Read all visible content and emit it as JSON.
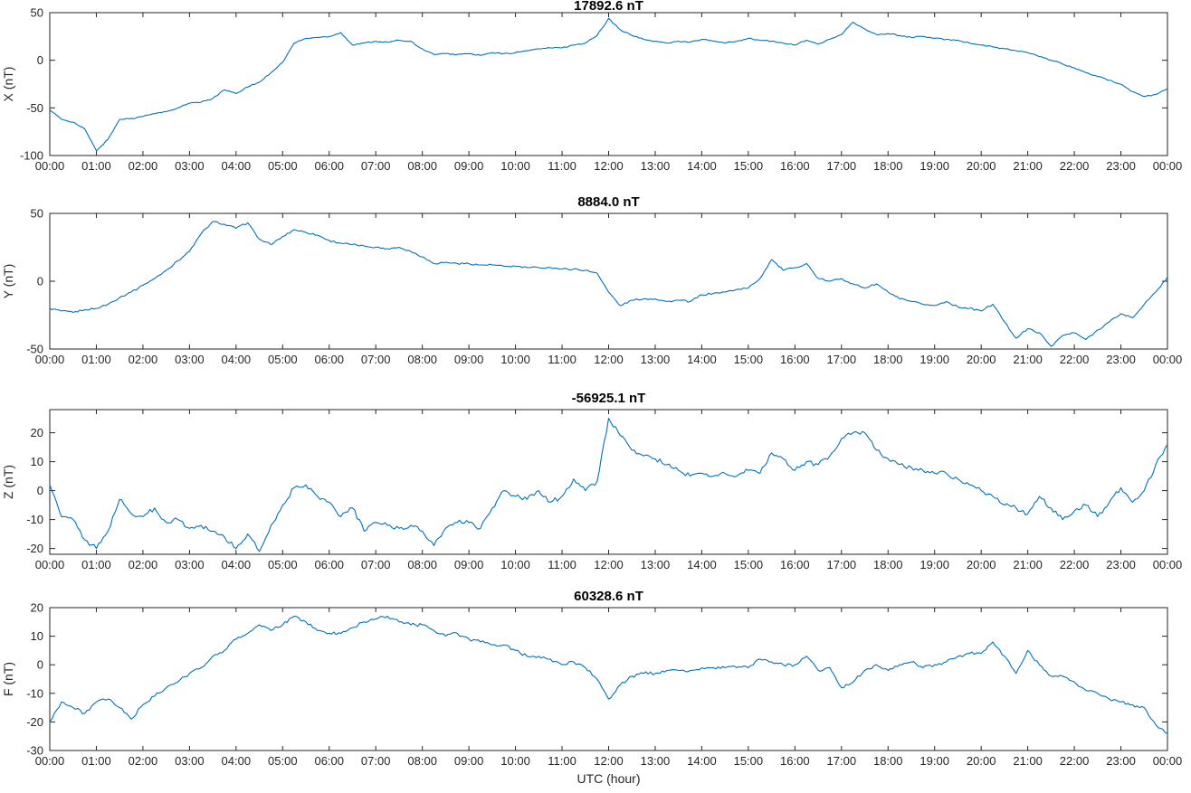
{
  "figure": {
    "xlabel": "UTC (hour)",
    "x_tick_labels": [
      "00:00",
      "01:00",
      "02:00",
      "03:00",
      "04:00",
      "05:00",
      "06:00",
      "07:00",
      "08:00",
      "09:00",
      "10:00",
      "11:00",
      "12:00",
      "13:00",
      "14:00",
      "15:00",
      "16:00",
      "17:00",
      "18:00",
      "19:00",
      "20:00",
      "21:00",
      "22:00",
      "23:00",
      "00:00"
    ],
    "colors": {
      "line": "#0072BD",
      "axis": "#262626",
      "text": "#262626",
      "background": "#FFFFFF"
    }
  },
  "chart_data": [
    {
      "type": "line",
      "title": "17892.6 nT",
      "ylabel": "X (nT)",
      "ylim": [
        -100,
        50
      ],
      "yticks": [
        50,
        0,
        -50,
        -100
      ],
      "x_start_hour": 0,
      "x_step_hours": 0.25,
      "grid": false,
      "legend": null,
      "noise_nT": 1.3,
      "values": [
        -52,
        -62,
        -65,
        -72,
        -95,
        -83,
        -62,
        -61,
        -59,
        -56,
        -54,
        -50,
        -45,
        -44,
        -40,
        -31,
        -35,
        -28,
        -23,
        -13,
        -2,
        18,
        23,
        24,
        25,
        29,
        16,
        18,
        20,
        19,
        21,
        20,
        12,
        6,
        7,
        6,
        7,
        5,
        8,
        7,
        8,
        10,
        12,
        13,
        13,
        16,
        18,
        26,
        44,
        32,
        26,
        22,
        20,
        18,
        20,
        19,
        22,
        20,
        18,
        20,
        23,
        21,
        20,
        18,
        16,
        21,
        17,
        22,
        27,
        40,
        33,
        27,
        28,
        26,
        24,
        25,
        23,
        22,
        21,
        18,
        16,
        14,
        12,
        10,
        8,
        4,
        0,
        -4,
        -8,
        -13,
        -17,
        -21,
        -25,
        -33,
        -38,
        -36,
        -30
      ]
    },
    {
      "type": "line",
      "title": "8884.0 nT",
      "ylabel": "Y (nT)",
      "ylim": [
        -50,
        50
      ],
      "yticks": [
        50,
        0,
        -50
      ],
      "x_start_hour": 0,
      "x_step_hours": 0.25,
      "grid": false,
      "legend": null,
      "noise_nT": 1.3,
      "values": [
        -20,
        -22,
        -23,
        -21,
        -20,
        -17,
        -12,
        -8,
        -3,
        2,
        8,
        15,
        22,
        35,
        44,
        42,
        39,
        43,
        31,
        27,
        33,
        38,
        36,
        34,
        30,
        28,
        27,
        26,
        25,
        24,
        25,
        22,
        18,
        13,
        14,
        13,
        13,
        12,
        12,
        11,
        11,
        10,
        10,
        10,
        9,
        9,
        8,
        6,
        -8,
        -18,
        -14,
        -13,
        -13,
        -15,
        -14,
        -15,
        -10,
        -9,
        -8,
        -6,
        -5,
        2,
        16,
        8,
        10,
        13,
        2,
        0,
        2,
        -2,
        -5,
        -2,
        -8,
        -13,
        -15,
        -17,
        -18,
        -15,
        -19,
        -20,
        -22,
        -17,
        -30,
        -42,
        -35,
        -38,
        -48,
        -40,
        -38,
        -43,
        -36,
        -30,
        -24,
        -27,
        -17,
        -8,
        3
      ]
    },
    {
      "type": "line",
      "title": "-56925.1 nT",
      "ylabel": "Z (nT)",
      "ylim": [
        -22,
        28
      ],
      "yticks": [
        20,
        10,
        0,
        -10,
        -20
      ],
      "x_start_hour": 0,
      "x_step_hours": 0.25,
      "grid": false,
      "legend": null,
      "noise_nT": 1.6,
      "values": [
        2,
        -9,
        -10,
        -17,
        -20,
        -14,
        -3,
        -8,
        -9,
        -6,
        -11,
        -10,
        -13,
        -12,
        -14,
        -16,
        -20,
        -15,
        -21,
        -12,
        -5,
        1,
        2,
        -2,
        -4,
        -9,
        -6,
        -14,
        -11,
        -12,
        -13,
        -12,
        -14,
        -19,
        -13,
        -11,
        -11,
        -13,
        -6,
        0,
        -2,
        -3,
        0,
        -4,
        -2,
        4,
        0,
        3,
        25,
        19,
        14,
        12,
        11,
        9,
        7,
        5,
        6,
        5,
        6,
        5,
        7,
        6,
        13,
        11,
        7,
        10,
        9,
        12,
        18,
        20,
        20,
        14,
        11,
        9,
        8,
        7,
        6,
        6,
        4,
        2,
        0,
        -2,
        -5,
        -6,
        -8,
        -2,
        -6,
        -10,
        -7,
        -5,
        -9,
        -4,
        1,
        -4,
        0,
        9,
        16
      ]
    },
    {
      "type": "line",
      "title": "60328.6 nT",
      "ylabel": "F (nT)",
      "ylim": [
        -30,
        20
      ],
      "yticks": [
        20,
        10,
        0,
        -10,
        -20,
        -30
      ],
      "x_start_hour": 0,
      "x_step_hours": 0.25,
      "grid": false,
      "legend": null,
      "noise_nT": 1.1,
      "values": [
        -20,
        -13,
        -15,
        -17,
        -13,
        -12,
        -15,
        -19,
        -14,
        -11,
        -8,
        -6,
        -3,
        -1,
        3,
        5,
        9,
        11,
        14,
        12,
        14,
        17,
        15,
        12,
        11,
        11,
        13,
        15,
        16,
        17,
        15,
        14,
        14,
        12,
        10,
        11,
        9,
        8,
        7,
        7,
        5,
        3,
        3,
        2,
        0,
        1,
        -1,
        -5,
        -12,
        -7,
        -4,
        -3,
        -3,
        -2,
        -2,
        -2,
        -1,
        -1,
        -1,
        -1,
        -1,
        2,
        1,
        0,
        0,
        3,
        -2,
        -1,
        -8,
        -6,
        -2,
        0,
        -2,
        0,
        1,
        -1,
        0,
        1,
        3,
        4,
        4,
        8,
        3,
        -3,
        5,
        0,
        -4,
        -4,
        -6,
        -9,
        -10,
        -12,
        -13,
        -14,
        -15,
        -21,
        -24
      ]
    }
  ]
}
